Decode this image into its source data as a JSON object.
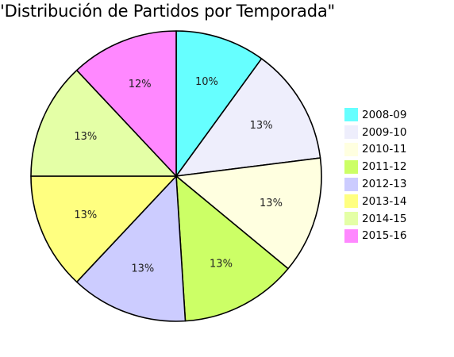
{
  "chart_data": {
    "type": "pie",
    "title": "'Distribución de Partidos por Temporada\"",
    "categories": [
      "2008-09",
      "2009-10",
      "2010-11",
      "2011-12",
      "2012-13",
      "2013-14",
      "2014-15",
      "2015-16"
    ],
    "values": [
      10,
      13,
      13,
      13,
      13,
      13,
      13,
      12
    ],
    "labels": [
      "10%",
      "13%",
      "13%",
      "13%",
      "13%",
      "13%",
      "13%",
      "12%"
    ],
    "colors": [
      "#66ffff",
      "#eeeefc",
      "#ffffe0",
      "#ccff66",
      "#ccccff",
      "#ffff80",
      "#e4ffa6",
      "#ff88ff"
    ],
    "legend_position": "right"
  }
}
